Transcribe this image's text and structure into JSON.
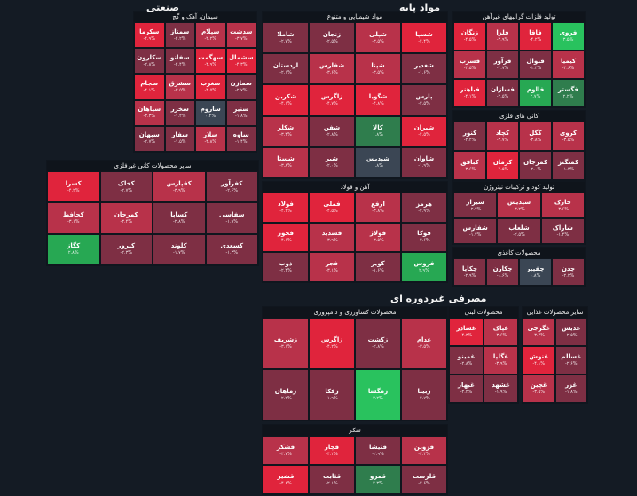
{
  "colors": {
    "bg": "#141b24",
    "sector": "#1c2530",
    "red3": "#e0243c",
    "red2": "#b8324a",
    "red1": "#7e2f44",
    "neutral": "#3b4654",
    "green1": "#2f7d4d",
    "green2": "#27a853",
    "green3": "#29c25e"
  },
  "sections": {
    "industrial": "صنعتی",
    "basic_materials": "مواد پایه",
    "consumer": "مصرفی غیردوره ای"
  },
  "groups": [
    {
      "title": "سیمان، آهک و گچ",
      "tiles": [
        [
          "سکرما",
          "-۴.۹%"
        ],
        [
          "سمتاز",
          "-۲.۲%"
        ],
        [
          "سیلام",
          "-۳.۲%"
        ],
        [
          "سدشت",
          "-۳.۷%"
        ],
        [
          "سکارون",
          "-۲.۸%"
        ],
        [
          "سفانو",
          "-۲.۴%"
        ],
        [
          "سهگمت",
          "-۴.۹%"
        ],
        [
          "سشمال",
          "-۴.۳%"
        ],
        [
          "سجام",
          "-۴.۱%"
        ],
        [
          "سشرق",
          "-۳.۵%"
        ],
        [
          "سغرب",
          "-۴.۵%"
        ],
        [
          "سمازن",
          "-۲.۷%"
        ],
        [
          "سپاهان",
          "-۳.۳%"
        ],
        [
          "سخزر",
          "-۱.۲%"
        ],
        [
          "ساروم",
          "۰.۴%"
        ],
        [
          "سنیر",
          "-۱.۸%"
        ],
        [
          "سبهان",
          "-۲.۷%"
        ],
        [
          "سفار",
          "-۱.۵%"
        ],
        [
          "سلار",
          "-۳.۸%"
        ],
        [
          "ساوه",
          "-۱.۴%"
        ]
      ]
    },
    {
      "title": "مواد شیمیایی و متنوع",
      "tiles": [
        [
          "شاملا",
          "-۲.۷%"
        ],
        [
          "زنجان",
          "-۲.۵%"
        ],
        [
          "شپلی",
          "-۳.۵%"
        ],
        [
          "شسپا",
          "-۴.۴%"
        ],
        [
          "اردستان",
          "-۲.۱%"
        ],
        [
          "شفارس",
          "-۳.۶%"
        ],
        [
          "شپنا",
          "-۳.۵%"
        ],
        [
          "شغدیر",
          "-۱.۶%"
        ],
        [
          "شکربن",
          "-۴.۱%"
        ],
        [
          "زاگرس",
          "-۴.۷%"
        ],
        [
          "شگویا",
          "-۴.۸%"
        ],
        [
          "پارس",
          "-۲.۵%"
        ],
        [
          "شکلر",
          "-۳.۳%"
        ],
        [
          "شفن",
          "-۲.۸%"
        ],
        [
          "کالا",
          "۱.۸%"
        ],
        [
          "شیران",
          "-۴.۵%"
        ],
        [
          "شستا",
          "-۳.۸%"
        ],
        [
          "شیر",
          "-۲.۰%"
        ],
        [
          "شپدیس",
          "۰.۸%"
        ],
        [
          "شاوان",
          "-۱.۹%"
        ]
      ]
    },
    {
      "title": "تولید فلزات گرانبهای غیرآهن",
      "tiles": [
        [
          "زنگان",
          "-۴.۵%"
        ],
        [
          "فلزا",
          "-۳.۹%"
        ],
        [
          "فاقا",
          "-۴.۲%"
        ],
        [
          "فروی",
          "۳.۵%"
        ],
        [
          "فسرب",
          "-۳.۵%"
        ],
        [
          "فرآور",
          "-۲.۷%"
        ],
        [
          "فنوال",
          "-۱.۳%"
        ],
        [
          "کیمیا",
          "-۳.۶%"
        ],
        [
          "فباهنر",
          "-۴.۱%"
        ],
        [
          "فسازان",
          "-۲.۵%"
        ],
        [
          "فالوم",
          "۲.۷%"
        ],
        [
          "فگستر",
          "۲.۲%"
        ]
      ]
    },
    {
      "title": "کانی های فلزی",
      "tiles": [
        [
          "کنور",
          "-۲.۲%"
        ],
        [
          "کچاد",
          "-۳.۷%"
        ],
        [
          "کگل",
          "-۳.۸%"
        ],
        [
          "کروی",
          "-۳.۵%"
        ],
        [
          "کبافق",
          "-۳.۶%"
        ],
        [
          "کرمان",
          "-۴.۵%"
        ],
        [
          "کمرجان",
          "-۲.۰%"
        ],
        [
          "کمنگنز",
          "-۱.۴%"
        ]
      ]
    },
    {
      "title": "سایر محصولات کانی غیرفلزی",
      "tiles": [
        [
          "کسرا",
          "-۴.۲%"
        ],
        [
          "کخاک",
          "-۲.۷%"
        ],
        [
          "کفپارس",
          "-۳.۹%"
        ],
        [
          "کفرآور",
          "-۲.۶%"
        ],
        [
          "کحافظ",
          "-۳.۱%"
        ],
        [
          "کمرجان",
          "-۳.۴%"
        ],
        [
          "کساپا",
          "-۲.۸%"
        ],
        [
          "سفاسی",
          "-۱.۹%"
        ],
        [
          "کگاز",
          "۲.۸%"
        ],
        [
          "کپرور",
          "-۲.۳%"
        ],
        [
          "کلوند",
          "-۱.۷%"
        ],
        [
          "کسعدی",
          "-۱.۳%"
        ]
      ]
    },
    {
      "title": "آهن و فولاد",
      "tiles": [
        [
          "فولاد",
          "-۴.۲%"
        ],
        [
          "فملی",
          "-۴.۵%"
        ],
        [
          "ارفع",
          "-۳.۸%"
        ],
        [
          "هرمز",
          "-۲.۹%"
        ],
        [
          "فخوز",
          "-۴.۶%"
        ],
        [
          "فسدید",
          "-۳.۹%"
        ],
        [
          "فولاژ",
          "-۳.۵%"
        ],
        [
          "فوکا",
          "-۲.۶%"
        ],
        [
          "ذوب",
          "-۲.۴%"
        ],
        [
          "فجر",
          "-۳.۱%"
        ],
        [
          "کویر",
          "-۱.۶%"
        ],
        [
          "فروس",
          "۲.۹%"
        ]
      ]
    },
    {
      "title": "تولید کود و ترکیبات نیتروژن",
      "tiles": [
        [
          "شیراز",
          "-۲.۷%"
        ],
        [
          "شپدیس",
          "-۳.۲%"
        ],
        [
          "خارک",
          "-۳.۶%"
        ],
        [
          "شفارس",
          "-۱.۷%"
        ],
        [
          "شلعاب",
          "-۲.۵%"
        ],
        [
          "شاراک",
          "-۱.۴%"
        ]
      ]
    },
    {
      "title": "محصولات کاغذی",
      "tiles": [
        [
          "چکاپا",
          "-۲.۹%"
        ],
        [
          "چکارن",
          "-۱.۶%"
        ],
        [
          "چفیبر",
          "۰.۸%"
        ],
        [
          "چدن",
          "-۲.۲%"
        ]
      ]
    },
    {
      "title": "محصولات کشاورزی و دامپروری",
      "tiles": [
        [
          "زشریف",
          "-۳.۱%"
        ],
        [
          "زاگرس",
          "-۴.۲%"
        ],
        [
          "زکشت",
          "-۲.۸%"
        ],
        [
          "غدام",
          "-۳.۵%"
        ],
        [
          "زماهان",
          "-۲.۲%"
        ],
        [
          "زفکا",
          "-۱.۹%"
        ],
        [
          "زمگسا",
          "۳.۲%"
        ],
        [
          "زبینا",
          "-۲.۷%"
        ]
      ]
    },
    {
      "title": "محصولات لبنی",
      "tiles": [
        [
          "غشاذر",
          "-۴.۳%"
        ],
        [
          "غپاک",
          "-۳.۶%"
        ],
        [
          "غمینو",
          "-۲.۸%"
        ],
        [
          "غگلپا",
          "-۳.۹%"
        ],
        [
          "غبهار",
          "-۲.۲%"
        ],
        [
          "غشهد",
          "-۱.۹%"
        ]
      ]
    },
    {
      "title": "سایر محصولات غذایی",
      "tiles": [
        [
          "غگرجی",
          "-۳.۴%"
        ],
        [
          "غدیس",
          "-۲.۵%"
        ],
        [
          "غنوش",
          "-۴.۱%"
        ],
        [
          "غسالم",
          "-۲.۶%"
        ],
        [
          "غچین",
          "-۳.۵%"
        ],
        [
          "غزر",
          "-۱.۸%"
        ]
      ]
    },
    {
      "title": "شکر",
      "tiles": [
        [
          "قشکر",
          "-۳.۷%"
        ],
        [
          "قچار",
          "-۴.۲%"
        ],
        [
          "قنیشا",
          "-۲.۹%"
        ],
        [
          "قزوین",
          "-۳.۳%"
        ],
        [
          "قشیر",
          "-۴.۸%"
        ],
        [
          "قثابت",
          "-۲.۱%"
        ],
        [
          "قمرو",
          "۲.۳%"
        ],
        [
          "قلرست",
          "-۲.۶%"
        ]
      ]
    }
  ]
}
